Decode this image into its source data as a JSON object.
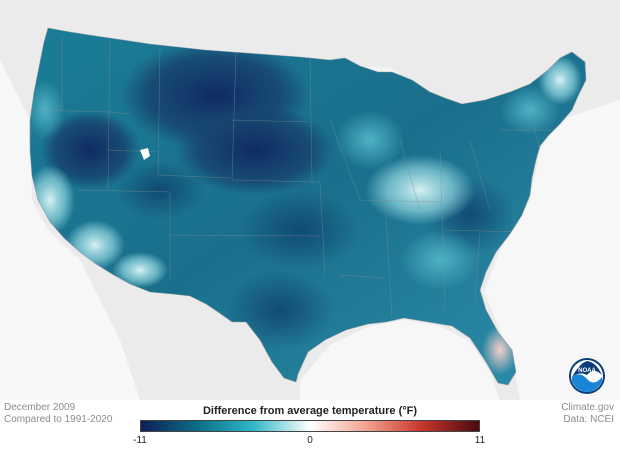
{
  "map": {
    "title": "Difference from average temperature",
    "unit": "(°F)",
    "period": "December 2009",
    "baseline": "Compared to 1991-2020",
    "source_site": "Climate.gov",
    "source_data": "Data: NCEI",
    "logo_text": "NOAA",
    "legend": {
      "min_label": "-11",
      "mid_label": "0",
      "max_label": "11",
      "min": -11,
      "max": 11,
      "colors": [
        "#0e1f57",
        "#0c6f89",
        "#2fb6c7",
        "#ffffff",
        "#f2a08e",
        "#c7362c",
        "#4a0a10"
      ]
    },
    "colors": {
      "land_background": "#e9e9e9",
      "water": "#ffffff"
    }
  }
}
